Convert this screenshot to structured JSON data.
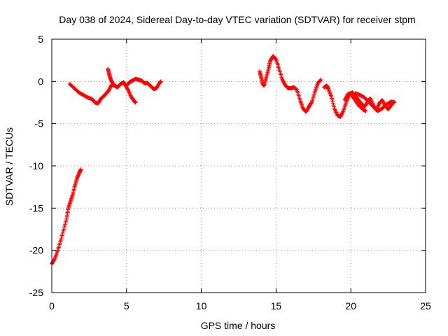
{
  "chart_data": {
    "type": "scatter",
    "title": "Day 038 of 2024, Sidereal Day-to-day VTEC variation (SDTVAR) for receiver stpm",
    "xlabel": "GPS time / hours",
    "ylabel": "SDTVAR / TECUs",
    "xlim": [
      0,
      25
    ],
    "ylim": [
      -25,
      5
    ],
    "xticks": [
      0,
      5,
      10,
      15,
      20,
      25
    ],
    "yticks": [
      -25,
      -20,
      -15,
      -10,
      -5,
      0,
      5
    ],
    "grid": true,
    "marker": "+",
    "series": [
      {
        "name": "SDTVAR",
        "color": "#ff0000",
        "segments": [
          [
            [
              0.0,
              -21.6
            ],
            [
              0.2,
              -21.0
            ],
            [
              0.4,
              -20.0
            ],
            [
              0.6,
              -18.8
            ],
            [
              0.8,
              -17.5
            ],
            [
              1.0,
              -16.2
            ],
            [
              1.1,
              -15.0
            ],
            [
              1.25,
              -14.2
            ],
            [
              1.4,
              -13.4
            ],
            [
              1.55,
              -12.3
            ],
            [
              1.7,
              -11.4
            ],
            [
              1.85,
              -10.8
            ],
            [
              1.95,
              -10.4
            ]
          ],
          [
            [
              1.2,
              -0.3
            ],
            [
              1.5,
              -0.8
            ],
            [
              1.8,
              -1.3
            ],
            [
              2.1,
              -1.6
            ],
            [
              2.4,
              -1.9
            ],
            [
              2.7,
              -2.1
            ],
            [
              2.9,
              -2.5
            ],
            [
              3.1,
              -2.6
            ],
            [
              3.3,
              -2.0
            ],
            [
              3.5,
              -1.7
            ],
            [
              3.7,
              -1.3
            ],
            [
              3.8,
              -1.1
            ],
            [
              4.0,
              -0.4
            ],
            [
              4.2,
              -0.5
            ],
            [
              4.4,
              -0.7
            ],
            [
              4.6,
              -0.3
            ],
            [
              4.8,
              -0.1
            ],
            [
              5.0,
              -0.5
            ],
            [
              5.2,
              -0.1
            ],
            [
              5.4,
              0.1
            ],
            [
              5.6,
              0.3
            ],
            [
              5.8,
              0.2
            ],
            [
              6.0,
              0.1
            ],
            [
              6.2,
              -0.2
            ],
            [
              6.4,
              -0.2
            ],
            [
              6.6,
              -0.5
            ],
            [
              6.8,
              -0.9
            ],
            [
              7.0,
              -0.8
            ],
            [
              7.2,
              -0.2
            ],
            [
              7.3,
              0.0
            ]
          ],
          [
            [
              3.75,
              1.5
            ],
            [
              3.85,
              0.8
            ],
            [
              3.95,
              0.2
            ],
            [
              4.1,
              -0.3
            ]
          ],
          [
            [
              4.9,
              -0.4
            ],
            [
              5.1,
              -1.0
            ],
            [
              5.3,
              -1.8
            ],
            [
              5.5,
              -2.3
            ],
            [
              5.6,
              -2.5
            ]
          ],
          [
            [
              13.9,
              1.2
            ],
            [
              14.0,
              0.5
            ],
            [
              14.1,
              -0.3
            ],
            [
              14.2,
              -0.5
            ],
            [
              14.35,
              0.5
            ],
            [
              14.5,
              1.5
            ],
            [
              14.6,
              2.4
            ],
            [
              14.8,
              3.0
            ],
            [
              15.0,
              2.6
            ],
            [
              15.2,
              1.5
            ],
            [
              15.4,
              0.3
            ],
            [
              15.6,
              -0.4
            ],
            [
              15.8,
              -0.8
            ],
            [
              16.0,
              -0.8
            ],
            [
              16.2,
              -0.7
            ],
            [
              16.4,
              -1.0
            ],
            [
              16.6,
              -2.2
            ],
            [
              16.8,
              -3.2
            ],
            [
              17.0,
              -3.6
            ],
            [
              17.2,
              -3.0
            ],
            [
              17.4,
              -2.4
            ],
            [
              17.6,
              -1.2
            ],
            [
              17.8,
              -0.2
            ],
            [
              18.0,
              0.2
            ]
          ],
          [
            [
              18.2,
              -0.7
            ],
            [
              18.4,
              -0.5
            ],
            [
              18.5,
              -0.9
            ],
            [
              18.7,
              -1.8
            ],
            [
              18.9,
              -3.2
            ],
            [
              19.1,
              -4.0
            ],
            [
              19.3,
              -4.2
            ],
            [
              19.5,
              -3.5
            ],
            [
              19.7,
              -2.4
            ],
            [
              19.9,
              -1.6
            ],
            [
              20.1,
              -1.3
            ],
            [
              20.3,
              -1.7
            ],
            [
              20.5,
              -2.2
            ],
            [
              20.7,
              -2.6
            ],
            [
              20.9,
              -3.0
            ],
            [
              21.1,
              -2.5
            ],
            [
              21.3,
              -2.0
            ],
            [
              21.5,
              -2.8
            ],
            [
              21.7,
              -3.4
            ],
            [
              21.9,
              -2.6
            ],
            [
              22.1,
              -2.2
            ],
            [
              22.3,
              -2.9
            ],
            [
              22.5,
              -3.3
            ],
            [
              22.7,
              -2.8
            ],
            [
              22.9,
              -2.4
            ]
          ],
          [
            [
              20.3,
              -1.4
            ],
            [
              20.6,
              -1.6
            ],
            [
              20.9,
              -1.9
            ],
            [
              21.2,
              -2.4
            ],
            [
              21.5,
              -3.0
            ],
            [
              21.8,
              -3.5
            ],
            [
              22.1,
              -3.2
            ],
            [
              22.4,
              -2.7
            ],
            [
              22.7,
              -2.4
            ],
            [
              22.9,
              -2.5
            ]
          ],
          [
            [
              19.6,
              -2.2
            ],
            [
              19.8,
              -1.5
            ],
            [
              20.0,
              -1.4
            ],
            [
              20.2,
              -2.0
            ],
            [
              20.5,
              -2.8
            ],
            [
              20.8,
              -3.3
            ],
            [
              21.0,
              -3.5
            ]
          ]
        ]
      }
    ]
  }
}
